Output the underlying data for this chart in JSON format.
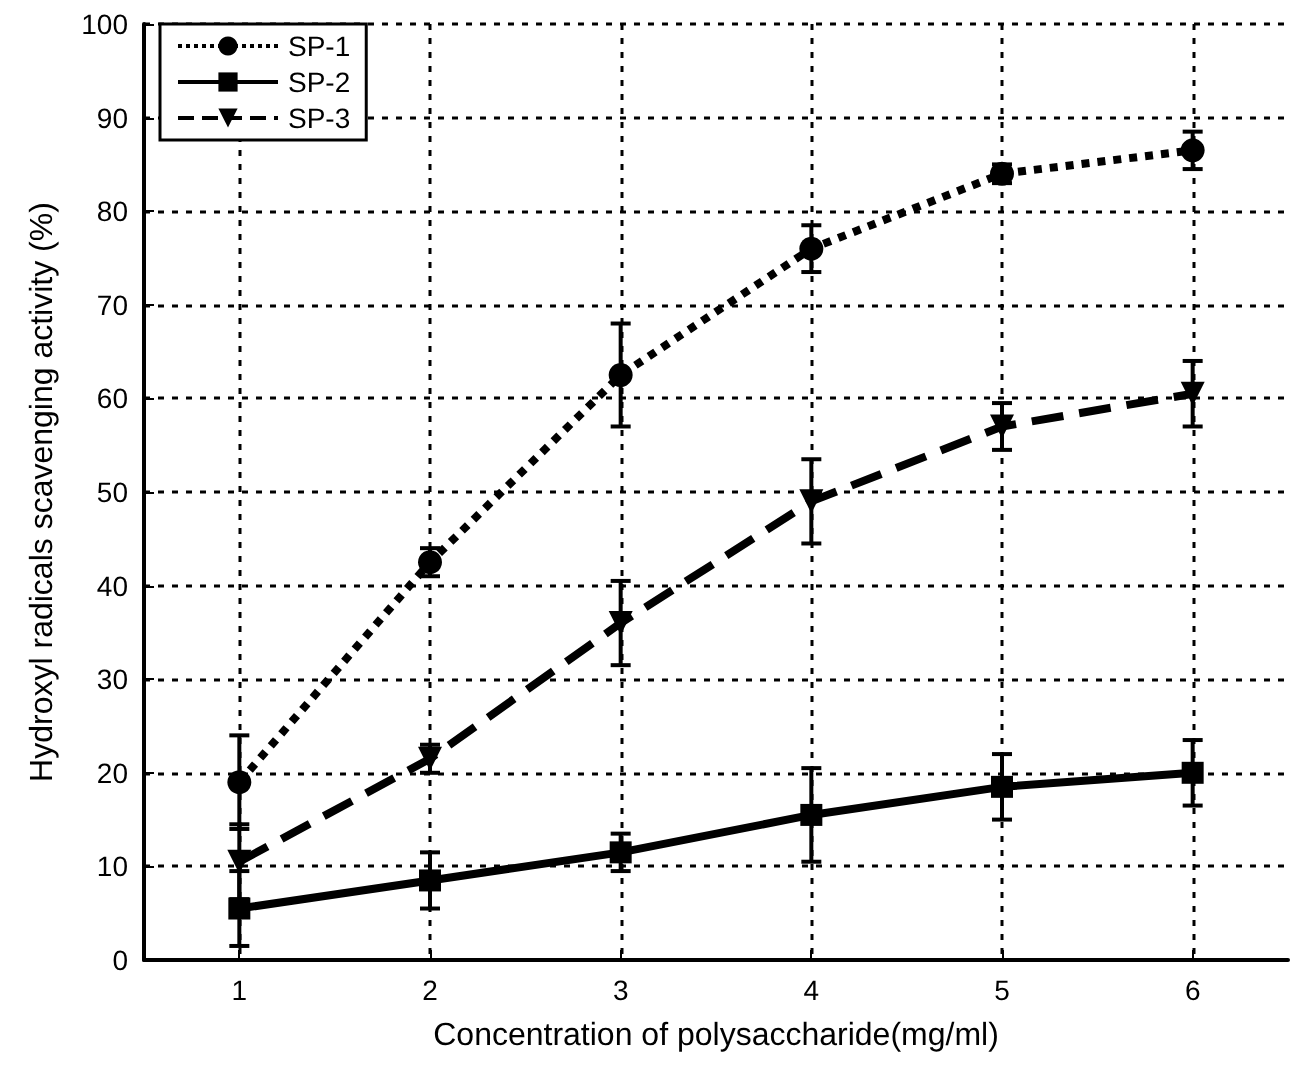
{
  "chart_data": {
    "type": "line",
    "xlabel": "Concentration of polysaccharide(mg/ml)",
    "ylabel": "Hydroxyl radicals scavenging activity (%)",
    "x": [
      1,
      2,
      3,
      4,
      5,
      6
    ],
    "xlim": [
      0.5,
      6.5
    ],
    "xticks": [
      1,
      2,
      3,
      4,
      5,
      6
    ],
    "ylim": [
      0,
      100
    ],
    "yticks": [
      0,
      10,
      20,
      30,
      40,
      50,
      60,
      70,
      80,
      90,
      100
    ],
    "grid": true,
    "legend": "top left",
    "series": [
      {
        "name": "SP-1",
        "color": "#000000",
        "marker": "circle",
        "line_style": "dotted",
        "values": [
          19,
          42.5,
          62.5,
          76,
          84,
          86.5
        ],
        "errors": [
          5,
          1.5,
          5.5,
          2.5,
          1,
          2
        ]
      },
      {
        "name": "SP-2",
        "color": "#000000",
        "marker": "square",
        "line_style": "solid",
        "values": [
          5.5,
          8.5,
          11.5,
          15.5,
          18.5,
          20
        ],
        "errors": [
          4,
          3,
          2,
          5,
          3.5,
          3.5
        ]
      },
      {
        "name": "SP-3",
        "color": "#000000",
        "marker": "triangle",
        "line_style": "dashed",
        "values": [
          10.5,
          21.5,
          36,
          49,
          57,
          60.5
        ],
        "errors": [
          4,
          1.5,
          4.5,
          4.5,
          2.5,
          3.5
        ]
      }
    ]
  }
}
